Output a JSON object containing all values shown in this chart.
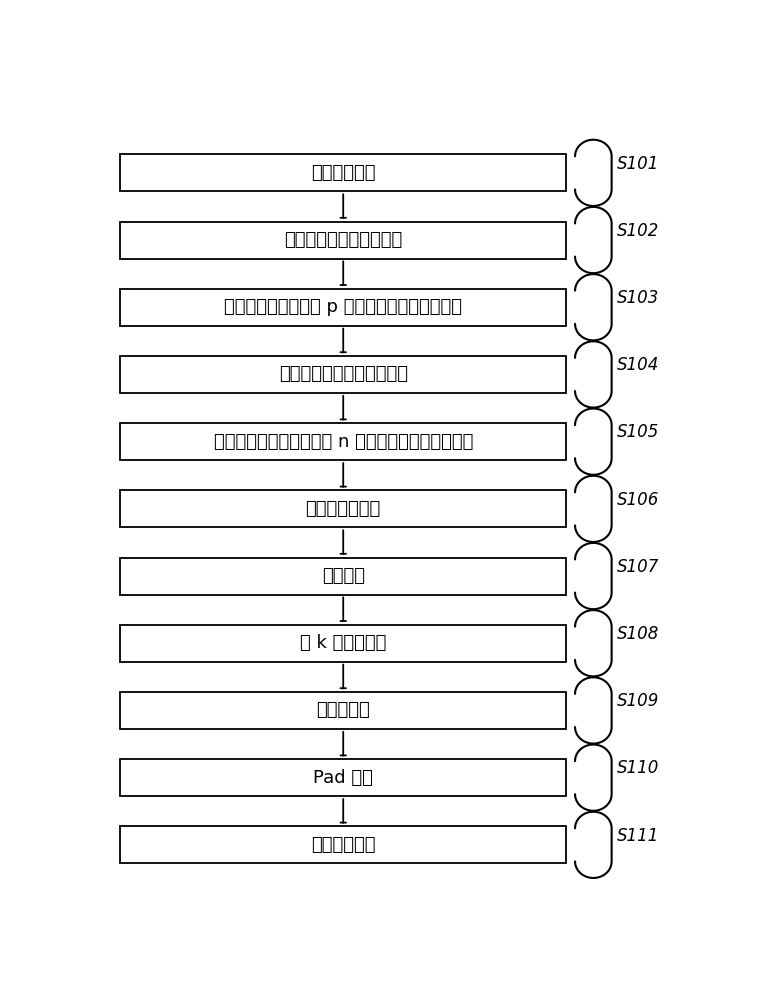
{
  "steps": [
    {
      "label": "选取衬底材料",
      "step_id": "S101"
    },
    {
      "label": "在所述衬底上生长缓冲层",
      "step_id": "S102"
    },
    {
      "label": "在缓冲层上依次生长 p 沟道锑化物量子阱异质结",
      "step_id": "S103"
    },
    {
      "label": "选区刻蚀外延材料至缓冲层",
      "step_id": "S104"
    },
    {
      "label": "在所述缓冲层上依次生长 n 沟道锑化物量子阱异质结",
      "step_id": "S105"
    },
    {
      "label": "形成钝化隔离层",
      "step_id": "S106"
    },
    {
      "label": "欧姆接触",
      "step_id": "S107"
    },
    {
      "label": "高 k 栅介质淀积",
      "step_id": "S108"
    },
    {
      "label": "栅金属淀积",
      "step_id": "S109"
    },
    {
      "label": "Pad 淀积",
      "step_id": "S110"
    },
    {
      "label": "钝化保护器件",
      "step_id": "S111"
    }
  ],
  "background_color": "#ffffff",
  "box_edge_color": "#000000",
  "text_color": "#000000",
  "arrow_color": "#000000",
  "box_fill_color": "#ffffff",
  "fig_width": 7.8,
  "fig_height": 10.0
}
